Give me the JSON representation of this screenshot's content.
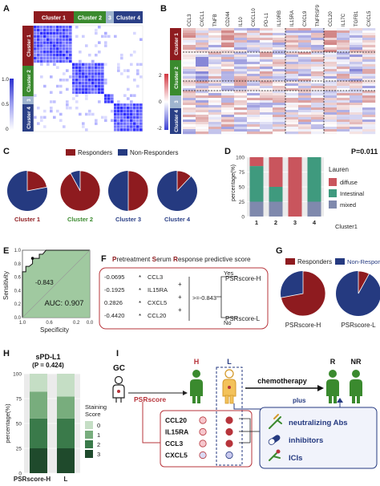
{
  "colors": {
    "cluster1": "#8e1b1f",
    "cluster2": "#3a8a2e",
    "cluster3": "#9fb4cf",
    "cluster4": "#2a3f86",
    "responders": "#8e1b1f",
    "non_responders": "#253a80",
    "diffuse": "#c9555d",
    "intestinal": "#3f9a7e",
    "mixed": "#7f89ad",
    "heat_low": "#3b3fd4",
    "heat_high": "#d23640"
  },
  "panels": {
    "A": {
      "label": "A",
      "clusters": [
        "Cluster 1",
        "Cluster 2",
        "3",
        "Cluster 4"
      ],
      "side_clusters": [
        "Cluster 1",
        "Cluster 2",
        "3",
        "Cluster 4"
      ],
      "scale_ticks": [
        "1.0",
        "0.5",
        "0"
      ]
    },
    "B": {
      "label": "B",
      "genes": [
        "CCL3",
        "CXCL1",
        "TNFB",
        "CD244",
        "IL10",
        "CXCL10",
        "PD-L1",
        "IL10RB",
        "IL15RA",
        "CXCL9",
        "TNFRSF9",
        "CCL20",
        "IL17C",
        "TGFB1",
        "CXCL5"
      ],
      "side_clusters": [
        "Cluster 1",
        "Cluster 2",
        "3",
        "Cluster 4"
      ],
      "scale_ticks": [
        "2",
        "0",
        "-2"
      ]
    },
    "C": {
      "label": "C",
      "legend": [
        "Responders",
        "Non-Responders"
      ],
      "pies": [
        {
          "name": "Cluster 1",
          "responders": 0.22
        },
        {
          "name": "Cluster 2",
          "responders": 0.92
        },
        {
          "name": "Cluster 3",
          "responders": 0.5
        },
        {
          "name": "Cluster 4",
          "responders": 0.12
        }
      ]
    },
    "D": {
      "label": "D",
      "pvalue": "P=0.011",
      "legend_title": "Lauren",
      "ylabel": "percentage(%)",
      "xlabel": "Cluster1",
      "y_ticks": [
        "100",
        "75",
        "50",
        "25",
        "0"
      ]
    },
    "E": {
      "label": "E",
      "auc": "AUC: 0.907",
      "threshold": "-0.843",
      "xlabel": "Specificity",
      "ylabel": "Sensitivity",
      "x_ticks": [
        "1.0",
        "0.6",
        "0.2",
        "0.0"
      ],
      "y_ticks": [
        "1.0",
        "0.8",
        "0.6",
        "0.4",
        "0.2",
        "0.0"
      ]
    },
    "F": {
      "label": "F",
      "title": "Pretreatment Serum Response predictive score",
      "terms": [
        {
          "coef": "-0.0695",
          "gene": "CCL3"
        },
        {
          "coef": "-0.1925",
          "gene": "IL15RA"
        },
        {
          "coef": "0.2826",
          "gene": "CXCL5"
        },
        {
          "coef": "-0.4420",
          "gene": "CCL20"
        }
      ],
      "comparator": ">=-0.843",
      "yes": "Yes",
      "no": "No",
      "out_high": "PSRscore-H",
      "out_low": "PSRscore-L"
    },
    "G": {
      "label": "G",
      "legend": [
        "Responders",
        "Non-Responders"
      ],
      "pies": [
        {
          "name": "PSRscore-H",
          "responders": 0.72
        },
        {
          "name": "PSRscore-L",
          "responders": 0.08
        }
      ]
    },
    "H": {
      "label": "H",
      "title": "sPD-L1",
      "pvalue": "(P = 0.424)",
      "ylabel": "percentage(%)",
      "legend_title": "Staining Score",
      "legend": [
        "0",
        "1",
        "2",
        "3"
      ],
      "x_ticks": [
        "PSRscore-H",
        "L"
      ],
      "y_ticks": [
        "100",
        "75",
        "50",
        "25",
        "0"
      ]
    },
    "I": {
      "label": "I",
      "gc": "GC",
      "psrscore": "PSRscore",
      "h": "H",
      "l": "L",
      "chemo": "chemotherapy",
      "plus": "plus",
      "r": "R",
      "nr": "NR",
      "genes": [
        "CCL20",
        "IL15RA",
        "CCL3",
        "CXCL5"
      ],
      "therapies": [
        "neutralizing Abs",
        "inhibitors",
        "ICIs"
      ]
    }
  },
  "chart_data": [
    {
      "type": "pie",
      "panel": "C",
      "categories": [
        "Responders",
        "Non-Responders"
      ],
      "series": [
        {
          "name": "Cluster 1",
          "values": [
            22,
            78
          ]
        },
        {
          "name": "Cluster 2",
          "values": [
            92,
            8
          ]
        },
        {
          "name": "Cluster 3",
          "values": [
            50,
            50
          ]
        },
        {
          "name": "Cluster 4",
          "values": [
            12,
            88
          ]
        }
      ]
    },
    {
      "type": "bar",
      "panel": "D",
      "stacked": true,
      "categories": [
        "1",
        "2",
        "3",
        "4"
      ],
      "series": [
        {
          "name": "diffuse",
          "values": [
            15,
            50,
            100,
            0
          ]
        },
        {
          "name": "Intestinal",
          "values": [
            60,
            25,
            0,
            75
          ]
        },
        {
          "name": "mixed",
          "values": [
            25,
            25,
            0,
            25
          ]
        }
      ],
      "ylabel": "percentage(%)",
      "xlabel": "Cluster1",
      "ylim": [
        0,
        100
      ]
    },
    {
      "type": "line",
      "panel": "E",
      "x": [
        1.0,
        1.0,
        0.95,
        0.95,
        0.9,
        0.85,
        0.85,
        0.75,
        0.75,
        0.7,
        0.65,
        0.65,
        0.0
      ],
      "y": [
        0.0,
        0.68,
        0.68,
        0.76,
        0.76,
        0.8,
        0.88,
        0.88,
        0.94,
        0.94,
        1.0,
        1.0,
        1.0
      ],
      "xlabel": "Specificity",
      "ylabel": "Sensitivity",
      "xlim": [
        1.0,
        0.0
      ],
      "ylim": [
        0.0,
        1.0
      ]
    },
    {
      "type": "pie",
      "panel": "G",
      "categories": [
        "Responders",
        "Non-Responders"
      ],
      "series": [
        {
          "name": "PSRscore-H",
          "values": [
            72,
            28
          ]
        },
        {
          "name": "PSRscore-L",
          "values": [
            8,
            92
          ]
        }
      ]
    },
    {
      "type": "bar",
      "panel": "H",
      "stacked": true,
      "categories": [
        "PSRscore-H",
        "L"
      ],
      "series": [
        {
          "name": "3",
          "values": [
            25,
            25
          ]
        },
        {
          "name": "2",
          "values": [
            30,
            30
          ]
        },
        {
          "name": "1",
          "values": [
            27,
            22
          ]
        },
        {
          "name": "0",
          "values": [
            18,
            23
          ]
        }
      ],
      "ylabel": "percentage(%)",
      "ylim": [
        0,
        100
      ]
    }
  ]
}
